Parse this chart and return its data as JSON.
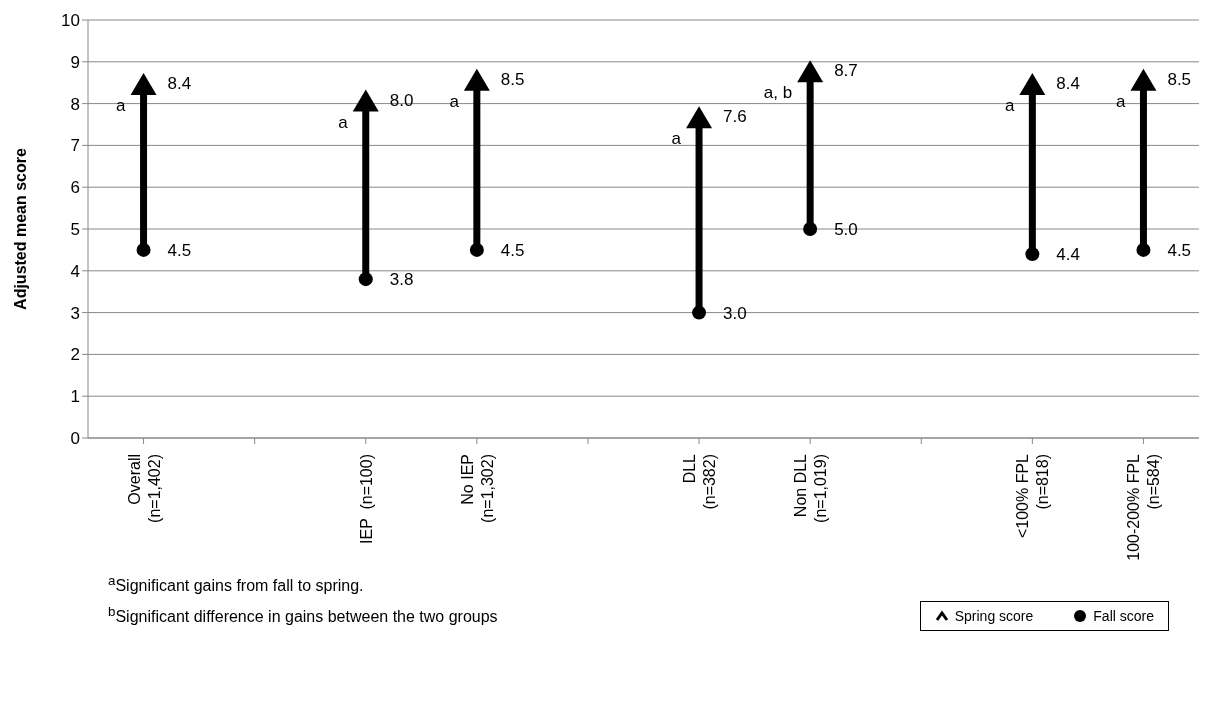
{
  "chart_data": {
    "type": "scatter",
    "ylabel": "Adjusted mean score",
    "categories": [
      "Overall\n(n=1,402)",
      null,
      "IEP  (n=100)",
      "No IEP\n(n=1,302)",
      null,
      "DLL\n(n=382)",
      "Non DLL\n(n=1,019)",
      null,
      "<100% FPL\n(n=818)",
      "100-200% FPL\n(n=584)"
    ],
    "series": [
      {
        "name": "Spring score",
        "color": "#000000",
        "marker": "triangle",
        "values": [
          8.4,
          null,
          8.0,
          8.5,
          null,
          7.6,
          8.7,
          null,
          8.4,
          8.5
        ],
        "value_labels": [
          "8.4",
          null,
          "8.0",
          "8.5",
          null,
          "7.6",
          "8.7",
          null,
          "8.4",
          "8.5"
        ]
      },
      {
        "name": "Fall score",
        "color": "#000000",
        "marker": "circle",
        "values": [
          4.5,
          null,
          3.8,
          4.5,
          null,
          3.0,
          5.0,
          null,
          4.4,
          4.5
        ],
        "value_labels": [
          "4.5",
          null,
          "3.8",
          "4.5",
          null,
          "3.0",
          "5.0",
          null,
          "4.4",
          "4.5"
        ]
      }
    ],
    "ylim": [
      0,
      10
    ],
    "yticks": [
      0,
      1,
      2,
      3,
      4,
      5,
      6,
      7,
      8,
      9,
      10
    ],
    "grid": "y",
    "legend": "bottom right",
    "annotations": [
      {
        "text": "a",
        "x": "Overall\n(n=1,402)",
        "y": 8.4
      },
      {
        "text": "a",
        "x": "IEP  (n=100)",
        "y": 8.0
      },
      {
        "text": "a",
        "x": "No IEP\n(n=1,302)",
        "y": 8.5
      },
      {
        "text": "a",
        "x": "DLL\n(n=382)",
        "y": 7.6
      },
      {
        "text": "a, b",
        "x": "Non DLL\n(n=1,019)",
        "y": 8.7
      },
      {
        "text": "a",
        "x": "<100% FPL\n(n=818)",
        "y": 8.4
      },
      {
        "text": "a",
        "x": "100-200% FPL\n(n=584)",
        "y": 8.5
      },
      "$^{a}$Significant gains from fall to spring.",
      "$^{b}$Significant difference in gains between the two groups"
    ]
  }
}
